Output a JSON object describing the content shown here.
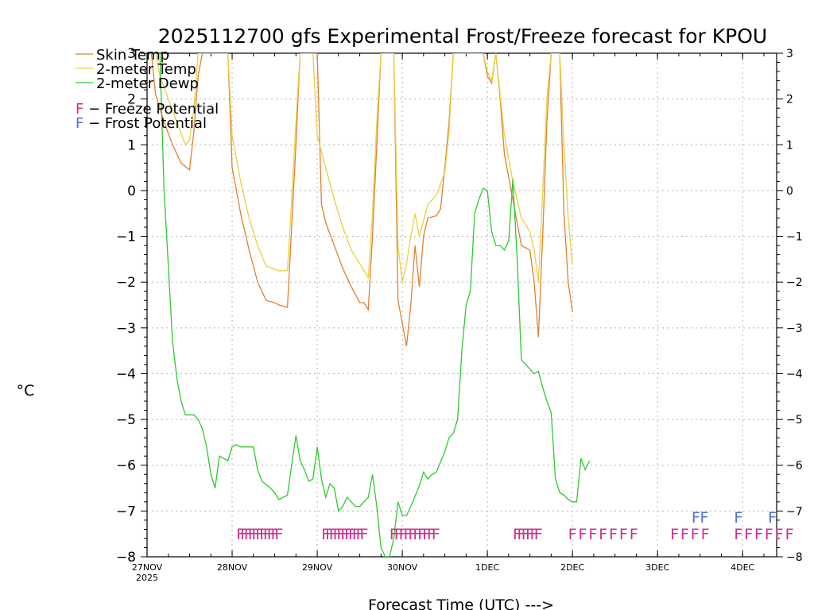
{
  "chart_data": {
    "type": "line",
    "title": "2025112700 gfs Experimental Frost/Freeze forecast for KPOU",
    "xlabel": "Forecast Time (UTC) --->",
    "ylabel": "°C",
    "ylim": [
      -8,
      3
    ],
    "yticks": [
      "3",
      "2",
      "1",
      "0",
      "−1",
      "−2",
      "−3",
      "−4",
      "−5",
      "−6",
      "−7",
      "−8"
    ],
    "xlim_days": [
      0,
      7.4
    ],
    "xticks": [
      {
        "day": 0,
        "label": "27NOV",
        "sub": "2025"
      },
      {
        "day": 1,
        "label": "28NOV",
        "sub": ""
      },
      {
        "day": 2,
        "label": "29NOV",
        "sub": ""
      },
      {
        "day": 3,
        "label": "30NOV",
        "sub": ""
      },
      {
        "day": 4,
        "label": "1DEC",
        "sub": ""
      },
      {
        "day": 5,
        "label": "2DEC",
        "sub": ""
      },
      {
        "day": 6,
        "label": "3DEC",
        "sub": ""
      },
      {
        "day": 7,
        "label": "4DEC",
        "sub": ""
      }
    ],
    "series": [
      {
        "name": "Skin Temp",
        "color": "#e08030",
        "points": [
          [
            0.05,
            3.0
          ],
          [
            0.1,
            2.1
          ],
          [
            0.2,
            1.5
          ],
          [
            0.3,
            1.0
          ],
          [
            0.4,
            0.6
          ],
          [
            0.5,
            0.45
          ],
          [
            0.55,
            1.3
          ],
          [
            0.6,
            2.5
          ],
          [
            0.65,
            3.0
          ],
          [
            0.95,
            3.0
          ],
          [
            1.0,
            0.5
          ],
          [
            1.05,
            0.0
          ],
          [
            1.1,
            -0.5
          ],
          [
            1.2,
            -1.3
          ],
          [
            1.3,
            -2.0
          ],
          [
            1.4,
            -2.4
          ],
          [
            1.5,
            -2.45
          ],
          [
            1.55,
            -2.5
          ],
          [
            1.65,
            -2.55
          ],
          [
            1.7,
            -0.8
          ],
          [
            1.75,
            1.0
          ],
          [
            1.8,
            3.0
          ],
          [
            2.0,
            3.0
          ],
          [
            2.05,
            -0.3
          ],
          [
            2.1,
            -0.7
          ],
          [
            2.2,
            -1.2
          ],
          [
            2.3,
            -1.7
          ],
          [
            2.4,
            -2.1
          ],
          [
            2.5,
            -2.45
          ],
          [
            2.55,
            -2.45
          ],
          [
            2.6,
            -2.6
          ],
          [
            2.65,
            -1.0
          ],
          [
            2.7,
            1.0
          ],
          [
            2.75,
            3.0
          ],
          [
            2.9,
            3.0
          ],
          [
            2.95,
            -2.4
          ],
          [
            3.0,
            -2.9
          ],
          [
            3.05,
            -3.4
          ],
          [
            3.1,
            -2.5
          ],
          [
            3.15,
            -1.2
          ],
          [
            3.2,
            -2.1
          ],
          [
            3.25,
            -1.0
          ],
          [
            3.3,
            -0.6
          ],
          [
            3.4,
            -0.55
          ],
          [
            3.45,
            -0.4
          ],
          [
            3.5,
            0.5
          ],
          [
            3.55,
            1.5
          ],
          [
            3.6,
            3.0
          ],
          [
            3.95,
            3.0
          ],
          [
            4.0,
            2.5
          ],
          [
            4.05,
            2.35
          ],
          [
            4.1,
            3.0
          ],
          [
            4.15,
            2.0
          ],
          [
            4.2,
            0.8
          ],
          [
            4.3,
            -0.2
          ],
          [
            4.4,
            -1.2
          ],
          [
            4.5,
            -1.3
          ],
          [
            4.55,
            -2.0
          ],
          [
            4.6,
            -3.2
          ],
          [
            4.65,
            -1.0
          ],
          [
            4.7,
            1.5
          ],
          [
            4.75,
            3.0
          ],
          [
            4.85,
            3.0
          ],
          [
            4.9,
            -0.5
          ],
          [
            4.95,
            -2.0
          ],
          [
            5.0,
            -2.65
          ]
        ]
      },
      {
        "name": "2-meter Temp",
        "color": "#e8d040",
        "points": [
          [
            0.1,
            3.0
          ],
          [
            0.15,
            2.5
          ],
          [
            0.25,
            2.0
          ],
          [
            0.35,
            1.5
          ],
          [
            0.45,
            1.0
          ],
          [
            0.5,
            1.1
          ],
          [
            0.55,
            1.8
          ],
          [
            0.6,
            3.0
          ],
          [
            0.95,
            3.0
          ],
          [
            1.0,
            1.2
          ],
          [
            1.1,
            0.2
          ],
          [
            1.2,
            -0.6
          ],
          [
            1.3,
            -1.2
          ],
          [
            1.4,
            -1.65
          ],
          [
            1.5,
            -1.72
          ],
          [
            1.55,
            -1.75
          ],
          [
            1.65,
            -1.75
          ],
          [
            1.7,
            -0.2
          ],
          [
            1.75,
            1.5
          ],
          [
            1.8,
            3.0
          ],
          [
            1.95,
            3.0
          ],
          [
            2.0,
            1.2
          ],
          [
            2.1,
            0.5
          ],
          [
            2.2,
            -0.2
          ],
          [
            2.3,
            -0.8
          ],
          [
            2.4,
            -1.3
          ],
          [
            2.5,
            -1.6
          ],
          [
            2.6,
            -1.9
          ],
          [
            2.65,
            -0.5
          ],
          [
            2.7,
            1.5
          ],
          [
            2.75,
            3.0
          ],
          [
            2.9,
            3.0
          ],
          [
            2.95,
            -1.2
          ],
          [
            3.0,
            -2.0
          ],
          [
            3.05,
            -1.6
          ],
          [
            3.1,
            -1.0
          ],
          [
            3.15,
            -0.5
          ],
          [
            3.2,
            -1.0
          ],
          [
            3.3,
            -0.3
          ],
          [
            3.4,
            -0.1
          ],
          [
            3.5,
            0.4
          ],
          [
            3.55,
            1.3
          ],
          [
            3.6,
            3.0
          ],
          [
            3.95,
            3.0
          ],
          [
            4.0,
            2.6
          ],
          [
            4.05,
            2.4
          ],
          [
            4.1,
            3.0
          ],
          [
            4.2,
            1.2
          ],
          [
            4.3,
            0.2
          ],
          [
            4.4,
            -0.6
          ],
          [
            4.5,
            -0.9
          ],
          [
            4.55,
            -1.3
          ],
          [
            4.6,
            -2.0
          ],
          [
            4.65,
            0.0
          ],
          [
            4.7,
            2.0
          ],
          [
            4.75,
            3.0
          ],
          [
            4.85,
            3.0
          ],
          [
            4.9,
            1.0
          ],
          [
            4.95,
            -0.6
          ],
          [
            5.0,
            -1.6
          ]
        ]
      },
      {
        "name": "2-meter Dewp",
        "color": "#30c830",
        "points": [
          [
            0.15,
            3.0
          ],
          [
            0.2,
            0.0
          ],
          [
            0.3,
            -3.3
          ],
          [
            0.35,
            -4.1
          ],
          [
            0.4,
            -4.6
          ],
          [
            0.45,
            -4.9
          ],
          [
            0.55,
            -4.9
          ],
          [
            0.6,
            -5.0
          ],
          [
            0.65,
            -5.2
          ],
          [
            0.7,
            -5.6
          ],
          [
            0.75,
            -6.2
          ],
          [
            0.8,
            -6.5
          ],
          [
            0.85,
            -5.8
          ],
          [
            0.95,
            -5.9
          ],
          [
            1.0,
            -5.6
          ],
          [
            1.05,
            -5.55
          ],
          [
            1.1,
            -5.6
          ],
          [
            1.2,
            -5.6
          ],
          [
            1.25,
            -5.6
          ],
          [
            1.3,
            -6.1
          ],
          [
            1.35,
            -6.35
          ],
          [
            1.45,
            -6.5
          ],
          [
            1.5,
            -6.6
          ],
          [
            1.55,
            -6.75
          ],
          [
            1.65,
            -6.65
          ],
          [
            1.7,
            -6.0
          ],
          [
            1.75,
            -5.35
          ],
          [
            1.8,
            -5.9
          ],
          [
            1.85,
            -6.1
          ],
          [
            1.9,
            -6.35
          ],
          [
            1.95,
            -6.3
          ],
          [
            2.0,
            -5.6
          ],
          [
            2.05,
            -6.3
          ],
          [
            2.1,
            -6.7
          ],
          [
            2.15,
            -6.4
          ],
          [
            2.2,
            -6.5
          ],
          [
            2.25,
            -7.0
          ],
          [
            2.3,
            -6.9
          ],
          [
            2.35,
            -6.7
          ],
          [
            2.45,
            -6.9
          ],
          [
            2.5,
            -6.9
          ],
          [
            2.55,
            -6.8
          ],
          [
            2.6,
            -6.7
          ],
          [
            2.65,
            -6.2
          ],
          [
            2.7,
            -6.9
          ],
          [
            2.75,
            -7.8
          ],
          [
            2.8,
            -8.0
          ],
          [
            2.85,
            -8.0
          ],
          [
            2.9,
            -7.6
          ],
          [
            2.95,
            -6.8
          ],
          [
            3.0,
            -7.1
          ],
          [
            3.05,
            -7.1
          ],
          [
            3.1,
            -6.9
          ],
          [
            3.2,
            -6.45
          ],
          [
            3.25,
            -6.15
          ],
          [
            3.3,
            -6.3
          ],
          [
            3.35,
            -6.2
          ],
          [
            3.4,
            -6.15
          ],
          [
            3.5,
            -5.7
          ],
          [
            3.55,
            -5.4
          ],
          [
            3.6,
            -5.3
          ],
          [
            3.65,
            -5.0
          ],
          [
            3.7,
            -3.5
          ],
          [
            3.75,
            -2.5
          ],
          [
            3.8,
            -2.2
          ],
          [
            3.85,
            -0.5
          ],
          [
            3.9,
            -0.2
          ],
          [
            3.95,
            0.05
          ],
          [
            4.0,
            0.0
          ],
          [
            4.05,
            -0.9
          ],
          [
            4.1,
            -1.2
          ],
          [
            4.15,
            -1.2
          ],
          [
            4.2,
            -1.3
          ],
          [
            4.25,
            -1.1
          ],
          [
            4.3,
            0.25
          ],
          [
            4.35,
            -1.5
          ],
          [
            4.4,
            -3.7
          ],
          [
            4.45,
            -3.8
          ],
          [
            4.5,
            -3.9
          ],
          [
            4.55,
            -4.0
          ],
          [
            4.6,
            -3.95
          ],
          [
            4.65,
            -4.3
          ],
          [
            4.7,
            -4.6
          ],
          [
            4.75,
            -4.85
          ],
          [
            4.8,
            -6.3
          ],
          [
            4.85,
            -6.6
          ],
          [
            4.9,
            -6.65
          ],
          [
            4.95,
            -6.75
          ],
          [
            5.0,
            -6.8
          ],
          [
            5.05,
            -6.8
          ],
          [
            5.1,
            -5.85
          ],
          [
            5.15,
            -6.1
          ],
          [
            5.2,
            -5.9
          ]
        ]
      }
    ],
    "legend": {
      "placement": "top-left",
      "entries": [
        {
          "label": "Skin Temp",
          "color": "#e08030"
        },
        {
          "label": "2-meter Temp",
          "color": "#e8d040"
        },
        {
          "label": "2-meter Dewp",
          "color": "#30c830"
        }
      ],
      "potentials": [
        {
          "symbol": "F",
          "text": " − Freeze Potential",
          "color": "#d03090"
        },
        {
          "symbol": "F",
          "text": " − Frost Potential",
          "color": "#5070d0"
        }
      ]
    },
    "freeze_markers": {
      "color": "#d03090",
      "level": -7.5,
      "groups": [
        {
          "start": 1.1,
          "count": 11,
          "step": 0.045
        },
        {
          "start": 2.1,
          "count": 11,
          "step": 0.045
        },
        {
          "start": 2.9,
          "count": 10,
          "step": 0.055
        },
        {
          "start": 4.35,
          "count": 6,
          "step": 0.05
        },
        {
          "start": 5.0,
          "count": 7,
          "step": 0.12
        },
        {
          "start": 6.2,
          "count": 4,
          "step": 0.12
        },
        {
          "start": 6.95,
          "count": 6,
          "step": 0.12
        }
      ]
    },
    "frost_markers": {
      "color": "#5070d0",
      "level": -7.13,
      "groups": [
        {
          "start": 6.45,
          "count": 2,
          "step": 0.1
        },
        {
          "start": 6.95,
          "count": 1,
          "step": 0.1
        },
        {
          "start": 7.35,
          "count": 1,
          "step": 0.1
        }
      ]
    }
  }
}
